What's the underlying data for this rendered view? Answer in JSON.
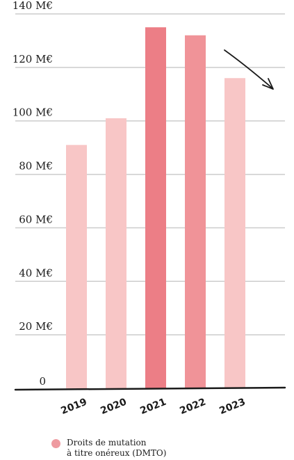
{
  "chart_data": {
    "type": "bar",
    "categories": [
      "2019",
      "2020",
      "2021",
      "2022",
      "2023"
    ],
    "values": [
      91,
      101,
      135,
      132,
      116
    ],
    "unit": "M€",
    "ylim": [
      0,
      140
    ],
    "yticks": [
      {
        "value": 0,
        "label": "0"
      },
      {
        "value": 20,
        "label": "20 M€"
      },
      {
        "value": 40,
        "label": "40 M€"
      },
      {
        "value": 60,
        "label": "60 M€"
      },
      {
        "value": 80,
        "label": "80 M€"
      },
      {
        "value": 100,
        "label": "100 M€"
      },
      {
        "value": 120,
        "label": "120 M€"
      },
      {
        "value": 140,
        "label": "140 M€"
      }
    ],
    "grid": true,
    "bar_colors": [
      "#f8c6c6",
      "#f8c6c6",
      "#ec7e86",
      "#f09398",
      "#f8c6c6"
    ],
    "legend": {
      "color": "#ee9aa0",
      "lines": [
        "Droits de mutation",
        "à titre onéreux (DMTO)"
      ]
    },
    "annotation": "downward-trend-arrow",
    "title": "",
    "xlabel": "",
    "ylabel": ""
  }
}
